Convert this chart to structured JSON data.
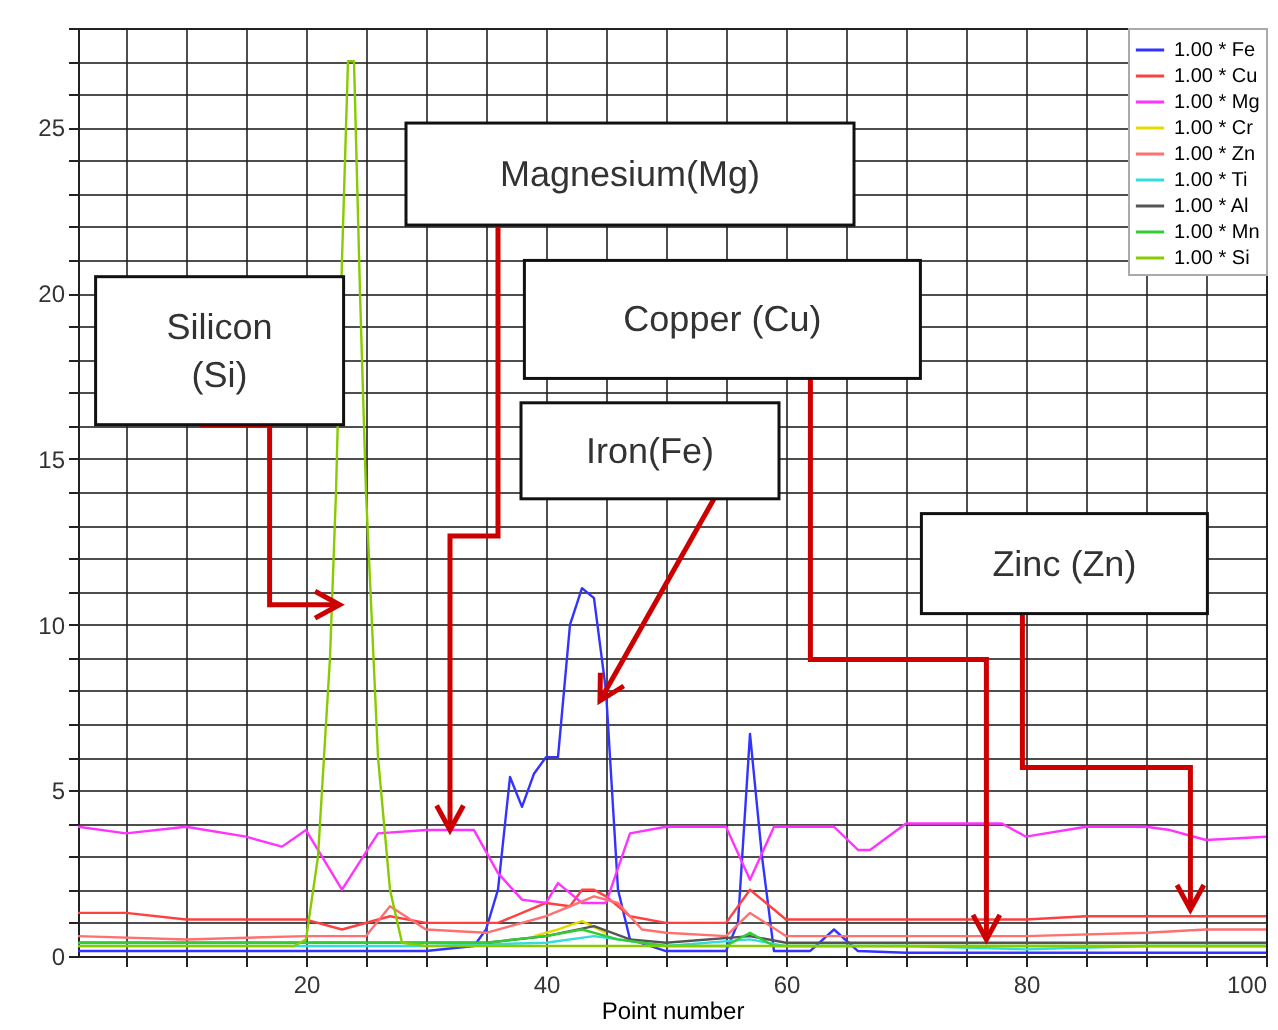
{
  "chart_data": {
    "type": "line",
    "xlabel": "Point number",
    "xlim": [
      1,
      100
    ],
    "ylim": [
      0,
      28
    ],
    "xticks": [
      {
        "value": 5,
        "label": null
      },
      {
        "value": 10,
        "label": null
      },
      {
        "value": 15,
        "label": null
      },
      20,
      {
        "value": 25,
        "label": null
      },
      {
        "value": 30,
        "label": null
      },
      {
        "value": 35,
        "label": null
      },
      40,
      {
        "value": 45,
        "label": null
      },
      {
        "value": 50,
        "label": null
      },
      {
        "value": 55,
        "label": null
      },
      60,
      {
        "value": 65,
        "label": null
      },
      {
        "value": 70,
        "label": null
      },
      {
        "value": 75,
        "label": null
      },
      80,
      {
        "value": 85,
        "label": null
      },
      {
        "value": 90,
        "label": null
      },
      {
        "value": 95,
        "label": null
      },
      100
    ],
    "yticks": [
      0,
      {
        "value": 1,
        "label": null
      },
      {
        "value": 2,
        "label": null
      },
      {
        "value": 3,
        "label": null
      },
      {
        "value": 4,
        "label": null
      },
      5,
      {
        "value": 6,
        "label": null
      },
      {
        "value": 7,
        "label": null
      },
      {
        "value": 8,
        "label": null
      },
      {
        "value": 9,
        "label": null
      },
      10,
      {
        "value": 11,
        "label": null
      },
      {
        "value": 12,
        "label": null
      },
      {
        "value": 13,
        "label": null
      },
      {
        "value": 14,
        "label": null
      },
      15,
      {
        "value": 16,
        "label": null
      },
      {
        "value": 17,
        "label": null
      },
      {
        "value": 18,
        "label": null
      },
      {
        "value": 19,
        "label": null
      },
      20,
      {
        "value": 21,
        "label": null
      },
      {
        "value": 22,
        "label": null
      },
      {
        "value": 23,
        "label": null
      },
      {
        "value": 24,
        "label": null
      },
      25,
      {
        "value": 26,
        "label": null
      },
      {
        "value": 27,
        "label": null
      },
      {
        "value": 28,
        "label": null
      }
    ],
    "grid": true,
    "legend": "top right",
    "marker": "none",
    "line_style": "solid",
    "annotations": [
      {
        "text": "Silicon\n(Si)",
        "x": 22.8,
        "y": 10.6
      },
      {
        "text": "Magnesium(Mg)",
        "x": 32,
        "y": 3.8
      },
      {
        "text": "Copper (Cu)",
        "x": 76.7,
        "y": 0.5
      },
      {
        "text": "Iron(Fe)",
        "x": 44.5,
        "y": 7.7
      },
      {
        "text": "Zinc (Zn)",
        "x": 93.7,
        "y": 1.4
      }
    ],
    "series": [
      {
        "name": "1.00 * Fe",
        "color": "#3333ff",
        "x": [
          1,
          10,
          20,
          30,
          34,
          35,
          36,
          37,
          38,
          39,
          40,
          41,
          42,
          43,
          44,
          45,
          46,
          47,
          50,
          55,
          56,
          57,
          58,
          59,
          62,
          64,
          66,
          70,
          80,
          90,
          100
        ],
        "values": [
          0.15,
          0.15,
          0.15,
          0.15,
          0.3,
          0.8,
          2,
          5.4,
          4.5,
          5.5,
          6,
          6,
          10,
          11.1,
          10.8,
          8,
          2,
          0.5,
          0.15,
          0.15,
          1,
          6.7,
          3,
          0.15,
          0.15,
          0.8,
          0.15,
          0.1,
          0.1,
          0.1,
          0.1
        ]
      },
      {
        "name": "1.00 * Cu",
        "color": "#ff4040",
        "x": [
          1,
          5,
          10,
          15,
          20,
          23,
          27,
          30,
          34,
          36,
          40,
          42,
          43,
          44,
          45,
          47,
          50,
          55,
          57,
          60,
          65,
          70,
          75,
          80,
          85,
          90,
          95,
          100
        ],
        "values": [
          1.3,
          1.3,
          1.1,
          1.1,
          1.1,
          0.8,
          1.2,
          1,
          1,
          1,
          1.6,
          1.5,
          2,
          2,
          1.8,
          1.2,
          1,
          1,
          2,
          1.1,
          1.1,
          1.1,
          1.1,
          1.1,
          1.2,
          1.2,
          1.2,
          1.2
        ]
      },
      {
        "name": "1.00 * Mg",
        "color": "#ff33ff",
        "x": [
          1,
          5,
          10,
          15,
          18,
          20,
          23,
          26,
          30,
          34,
          36,
          38,
          40,
          41,
          43,
          45,
          47,
          50,
          55,
          57,
          59,
          64,
          66,
          67,
          70,
          75,
          78,
          80,
          85,
          90,
          92,
          95,
          100
        ],
        "values": [
          3.9,
          3.7,
          3.9,
          3.6,
          3.3,
          3.8,
          2,
          3.7,
          3.8,
          3.8,
          2.5,
          1.7,
          1.6,
          2.2,
          1.6,
          1.6,
          3.7,
          3.9,
          3.9,
          2.3,
          3.9,
          3.9,
          3.2,
          3.2,
          4,
          4,
          4,
          3.6,
          3.9,
          3.9,
          3.8,
          3.5,
          3.6
        ]
      },
      {
        "name": "1.00 * Cr",
        "color": "#e6d800",
        "x": [
          39,
          41,
          43,
          45
        ],
        "values": [
          0.6,
          0.8,
          1.05,
          0.7
        ]
      },
      {
        "name": "1.00 * Zn",
        "color": "#ff7070",
        "x": [
          1,
          10,
          20,
          25,
          27,
          30,
          35,
          40,
          42,
          44,
          46,
          48,
          50,
          55,
          57,
          60,
          70,
          80,
          90,
          95,
          100
        ],
        "values": [
          0.6,
          0.5,
          0.6,
          0.6,
          1.5,
          0.8,
          0.7,
          1.2,
          1.5,
          1.8,
          1.6,
          0.8,
          0.7,
          0.6,
          1.3,
          0.6,
          0.6,
          0.6,
          0.7,
          0.8,
          0.8
        ]
      },
      {
        "name": "1.00 * Ti",
        "color": "#33dddd",
        "x": [
          1,
          10,
          20,
          30,
          40,
          44,
          50,
          57,
          60,
          70,
          80,
          90,
          100
        ],
        "values": [
          0.3,
          0.3,
          0.3,
          0.3,
          0.4,
          0.6,
          0.3,
          0.5,
          0.3,
          0.3,
          0.2,
          0.3,
          0.3
        ]
      },
      {
        "name": "1.00 * Al",
        "color": "#555555",
        "x": [
          1,
          10,
          20,
          30,
          35,
          40,
          44,
          47,
          50,
          57,
          60,
          70,
          80,
          90,
          100
        ],
        "values": [
          0.4,
          0.4,
          0.4,
          0.4,
          0.4,
          0.6,
          0.9,
          0.5,
          0.4,
          0.6,
          0.4,
          0.4,
          0.4,
          0.4,
          0.4
        ]
      },
      {
        "name": "1.00 * Mn",
        "color": "#33cc33",
        "x": [
          1,
          10,
          20,
          30,
          35,
          40,
          43,
          46,
          50,
          55,
          57,
          59,
          70,
          80,
          90,
          100
        ],
        "values": [
          0.4,
          0.4,
          0.4,
          0.4,
          0.4,
          0.6,
          0.8,
          0.5,
          0.3,
          0.3,
          0.7,
          0.3,
          0.3,
          0.3,
          0.3,
          0.3
        ]
      },
      {
        "name": "1.00 * Si",
        "color": "#88cc00",
        "x": [
          1,
          10,
          19,
          20,
          21,
          22,
          22.5,
          23,
          23.5,
          24,
          24.5,
          25,
          26,
          27,
          28,
          30,
          40,
          50,
          60,
          70,
          80,
          90,
          100
        ],
        "values": [
          0.3,
          0.3,
          0.3,
          0.5,
          3,
          9,
          14,
          21,
          27,
          27,
          20,
          14,
          6,
          2,
          0.4,
          0.3,
          0.3,
          0.3,
          0.3,
          0.3,
          0.3,
          0.3,
          0.3
        ]
      }
    ]
  }
}
